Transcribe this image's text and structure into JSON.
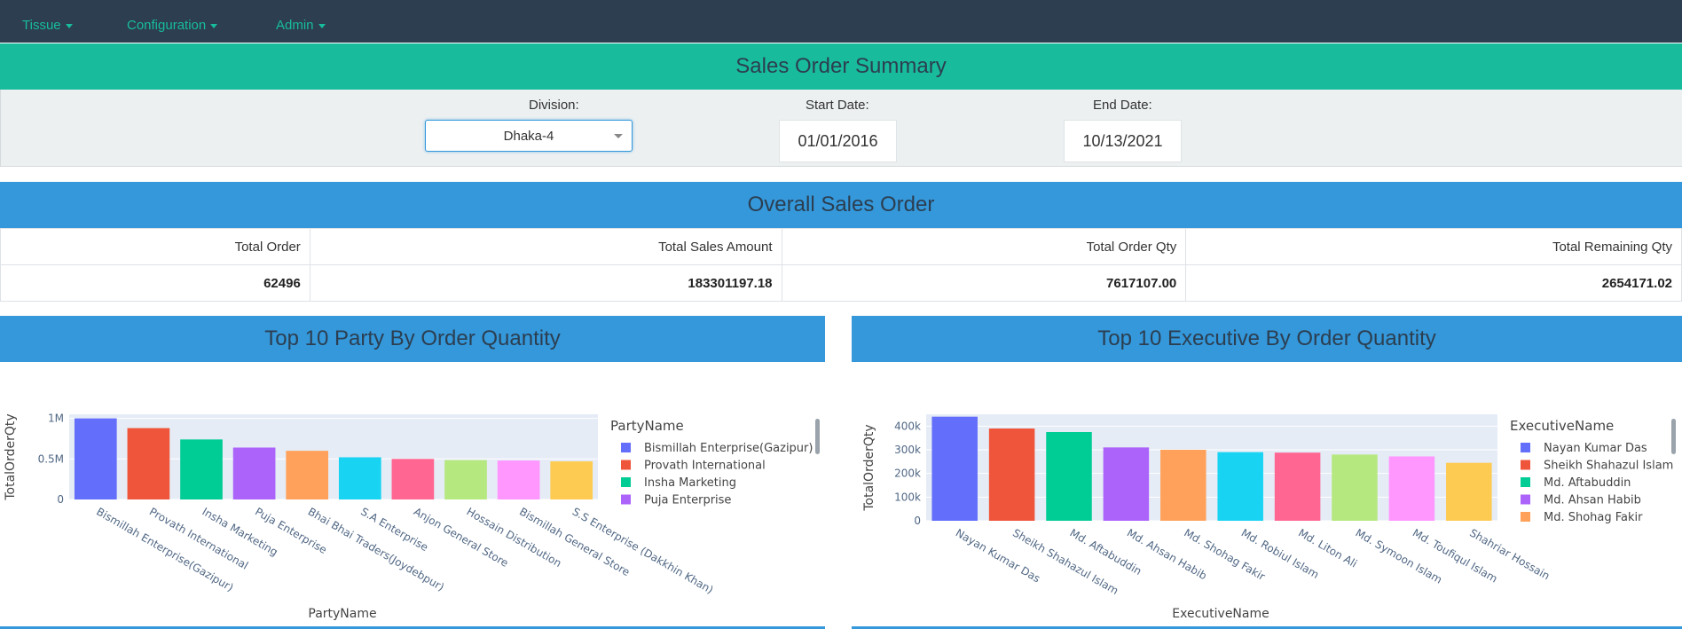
{
  "nav": {
    "items": [
      {
        "label": "Tissue"
      },
      {
        "label": "Configuration"
      },
      {
        "label": "Admin"
      }
    ]
  },
  "summary": {
    "title": "Sales Order Summary",
    "division_label": "Division:",
    "division_value": "Dhaka-4",
    "start_label": "Start Date:",
    "start_value": "01/01/2016",
    "end_label": "End Date:",
    "end_value": "10/13/2021"
  },
  "overall": {
    "title": "Overall Sales Order",
    "headers": [
      "Total Order",
      "Total Sales Amount",
      "Total Order Qty",
      "Total Remaining Qty"
    ],
    "values": [
      "62496",
      "183301197.18",
      "7617107.00",
      "2654171.02"
    ]
  },
  "colors": [
    "#636efa",
    "#ef553b",
    "#00cc96",
    "#ab63fa",
    "#ffa15a",
    "#19d3f3",
    "#ff6692",
    "#b6e880",
    "#ff97ff",
    "#fecb52"
  ],
  "chart_data": [
    {
      "type": "bar",
      "title": "Top 10 Party By Order Quantity",
      "xlabel": "PartyName",
      "ylabel": "TotalOrderQty",
      "legend_title": "PartyName",
      "ylim": [
        0,
        1050000
      ],
      "yticks": [
        0,
        500000,
        1000000
      ],
      "ytick_labels": [
        "0",
        "0.5M",
        "1M"
      ],
      "categories": [
        "Bismillah Enterprise(Gazipur)",
        "Provath International",
        "Insha Marketing",
        "Puja Enterprise",
        "Bhai Bhai Traders(Joydebpur)",
        "S.A Enterprise",
        "Anjon General Store",
        "Hossain Distribution",
        "Bismillah General Store",
        "S.S Enterprise (Dakkhin Khan)"
      ],
      "values": [
        1000000,
        880000,
        740000,
        640000,
        600000,
        520000,
        500000,
        485000,
        480000,
        470000
      ],
      "legend_visible": [
        "Bismillah Enterprise(Gazipur)",
        "Provath International",
        "Insha Marketing",
        "Puja Enterprise"
      ]
    },
    {
      "type": "bar",
      "title": "Top 10 Executive By Order Quantity",
      "xlabel": "ExecutiveName",
      "ylabel": "TotalOrderQty",
      "legend_title": "ExecutiveName",
      "ylim": [
        0,
        450000
      ],
      "yticks": [
        0,
        100000,
        200000,
        300000,
        400000
      ],
      "ytick_labels": [
        "0",
        "100k",
        "200k",
        "300k",
        "400k"
      ],
      "categories": [
        "Nayan Kumar Das",
        "Sheikh Shahazul Islam",
        "Md. Aftabuddin",
        "Md. Ahsan Habib",
        "Md. Shohag Fakir",
        "Md. Robiul Islam",
        "Md. Liton Ali",
        "Md. Symoon Islam",
        "Md. Toufiqul Islam",
        "Shahriar Hossain"
      ],
      "values": [
        440000,
        390000,
        375000,
        310000,
        300000,
        290000,
        288000,
        280000,
        272000,
        245000
      ],
      "legend_visible": [
        "Nayan Kumar Das",
        "Sheikh Shahazul Islam",
        "Md. Aftabuddin",
        "Md. Ahsan Habib",
        "Md. Shohag Fakir"
      ]
    }
  ]
}
